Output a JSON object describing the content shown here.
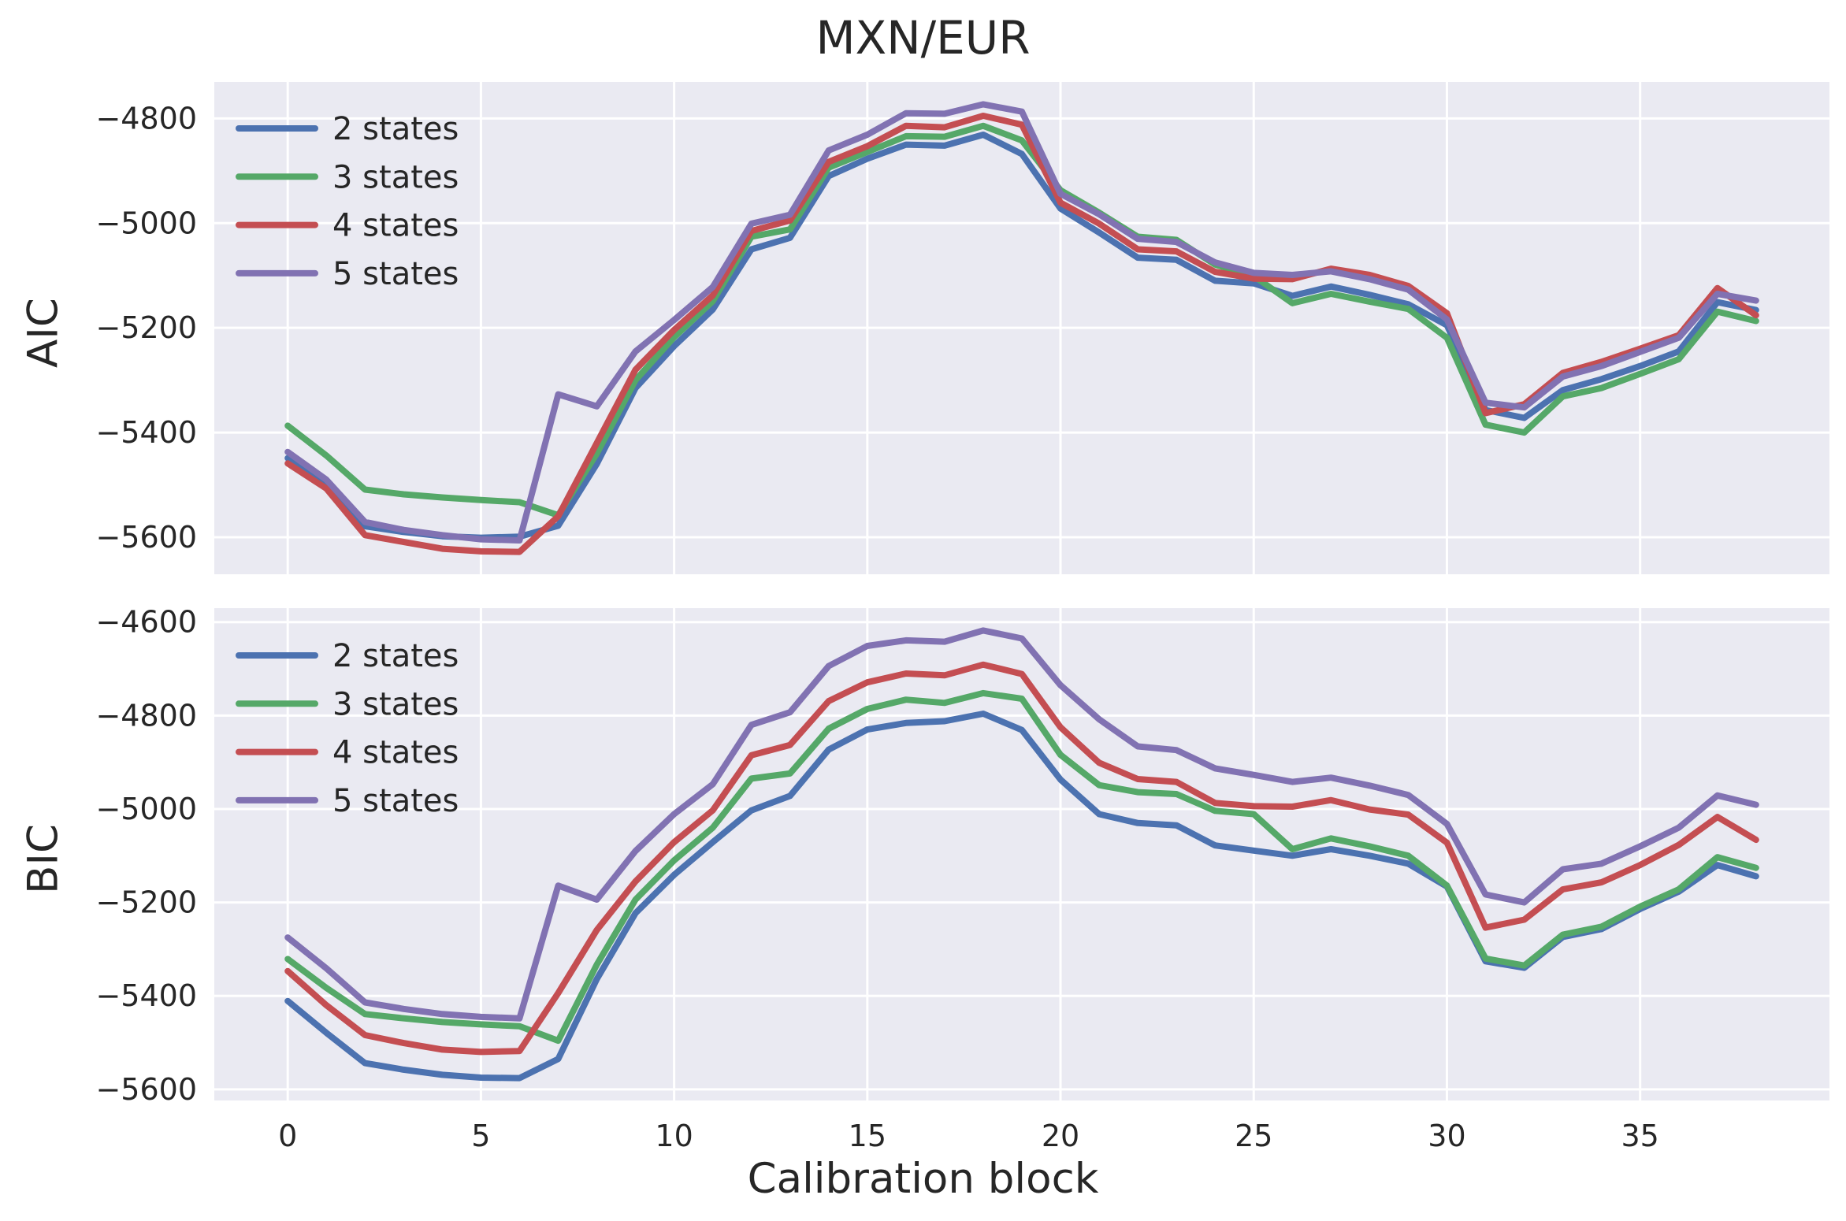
{
  "title": "MXN/EUR",
  "xlabel": "Calibration block",
  "style": {
    "figure_bg": "#ffffff",
    "axes_bg": "#eaeaf2",
    "grid_color": "#ffffff",
    "text_color": "#262626",
    "legend_text_color": "#262626"
  },
  "chart_data": [
    {
      "type": "line",
      "ylabel": "AIC",
      "grid": true,
      "legend_position": "upper left",
      "legend_entries": [
        "2 states",
        "3 states",
        "4 states",
        "5 states"
      ],
      "xticks": [
        0,
        5,
        10,
        15,
        20,
        25,
        30,
        35
      ],
      "yticks": [
        -4800,
        -5000,
        -5200,
        -5400,
        -5600
      ],
      "x": [
        0,
        1,
        2,
        3,
        4,
        5,
        6,
        7,
        8,
        9,
        10,
        11,
        12,
        13,
        14,
        15,
        16,
        17,
        18,
        19,
        20,
        21,
        22,
        23,
        24,
        25,
        26,
        27,
        28,
        29,
        30,
        31,
        32,
        33,
        34,
        35,
        36,
        37,
        38
      ],
      "series": [
        {
          "name": "2 states",
          "color": "#4C72B0",
          "values": [
            -5449,
            -5497,
            -5579,
            -5590,
            -5598,
            -5601,
            -5599,
            -5578,
            -5460,
            -5315,
            -5235,
            -5165,
            -5050,
            -5028,
            -4910,
            -4877,
            -4850,
            -4852,
            -4831,
            -4868,
            -4972,
            -5018,
            -5066,
            -5070,
            -5110,
            -5115,
            -5139,
            -5121,
            -5137,
            -5155,
            -5195,
            -5357,
            -5372,
            -5319,
            -5298,
            -5273,
            -5245,
            -5151,
            -5166
          ]
        },
        {
          "name": "3 states",
          "color": "#55A868",
          "values": [
            -5387,
            -5444,
            -5509,
            -5518,
            -5524,
            -5529,
            -5533,
            -5558,
            -5440,
            -5300,
            -5218,
            -5149,
            -5026,
            -5012,
            -4894,
            -4864,
            -4834,
            -4835,
            -4814,
            -4842,
            -4937,
            -4980,
            -5026,
            -5032,
            -5079,
            -5101,
            -5153,
            -5135,
            -5150,
            -5164,
            -5219,
            -5385,
            -5400,
            -5331,
            -5315,
            -5288,
            -5260,
            -5169,
            -5187
          ]
        },
        {
          "name": "4 states",
          "color": "#C44E52",
          "values": [
            -5459,
            -5507,
            -5596,
            -5609,
            -5622,
            -5627,
            -5628,
            -5560,
            -5420,
            -5280,
            -5204,
            -5138,
            -5015,
            -4995,
            -4883,
            -4853,
            -4814,
            -4817,
            -4795,
            -4812,
            -4961,
            -5001,
            -5050,
            -5054,
            -5093,
            -5106,
            -5107,
            -5087,
            -5099,
            -5120,
            -5172,
            -5363,
            -5346,
            -5286,
            -5265,
            -5240,
            -5214,
            -5124,
            -5176
          ]
        },
        {
          "name": "5 states",
          "color": "#8172B2",
          "values": [
            -5437,
            -5490,
            -5571,
            -5586,
            -5596,
            -5604,
            -5606,
            -5327,
            -5350,
            -5245,
            -5185,
            -5122,
            -5001,
            -4984,
            -4861,
            -4831,
            -4790,
            -4791,
            -4773,
            -4787,
            -4944,
            -4983,
            -5030,
            -5036,
            -5075,
            -5095,
            -5099,
            -5092,
            -5107,
            -5127,
            -5184,
            -5343,
            -5352,
            -5293,
            -5273,
            -5246,
            -5219,
            -5135,
            -5148
          ]
        }
      ]
    },
    {
      "type": "line",
      "ylabel": "BIC",
      "grid": true,
      "legend_position": "upper left",
      "legend_entries": [
        "2 states",
        "3 states",
        "4 states",
        "5 states"
      ],
      "xticks": [
        0,
        5,
        10,
        15,
        20,
        25,
        30,
        35
      ],
      "yticks": [
        -4600,
        -4800,
        -5000,
        -5200,
        -5400,
        -5600
      ],
      "x": [
        0,
        1,
        2,
        3,
        4,
        5,
        6,
        7,
        8,
        9,
        10,
        11,
        12,
        13,
        14,
        15,
        16,
        17,
        18,
        19,
        20,
        21,
        22,
        23,
        24,
        25,
        26,
        27,
        28,
        29,
        30,
        31,
        32,
        33,
        34,
        35,
        36,
        37,
        38
      ],
      "series": [
        {
          "name": "2 states",
          "color": "#4C72B0",
          "values": [
            -5411,
            -5479,
            -5544,
            -5558,
            -5569,
            -5575,
            -5576,
            -5535,
            -5364,
            -5223,
            -5141,
            -5071,
            -5003,
            -4972,
            -4873,
            -4830,
            -4816,
            -4812,
            -4796,
            -4831,
            -4937,
            -5011,
            -5030,
            -5035,
            -5078,
            -5089,
            -5100,
            -5086,
            -5100,
            -5117,
            -5166,
            -5326,
            -5340,
            -5274,
            -5257,
            -5214,
            -5177,
            -5120,
            -5144
          ]
        },
        {
          "name": "3 states",
          "color": "#55A868",
          "values": [
            -5321,
            -5383,
            -5439,
            -5448,
            -5456,
            -5461,
            -5465,
            -5496,
            -5333,
            -5194,
            -5110,
            -5040,
            -4935,
            -4924,
            -4828,
            -4786,
            -4766,
            -4773,
            -4752,
            -4764,
            -4884,
            -4949,
            -4964,
            -4968,
            -5004,
            -5011,
            -5086,
            -5063,
            -5080,
            -5100,
            -5164,
            -5320,
            -5335,
            -5269,
            -5252,
            -5209,
            -5172,
            -5103,
            -5126
          ]
        },
        {
          "name": "4 states",
          "color": "#C44E52",
          "values": [
            -5347,
            -5420,
            -5484,
            -5501,
            -5515,
            -5520,
            -5518,
            -5394,
            -5259,
            -5155,
            -5071,
            -5003,
            -4885,
            -4863,
            -4769,
            -4729,
            -4710,
            -4714,
            -4691,
            -4711,
            -4825,
            -4901,
            -4936,
            -4942,
            -4987,
            -4994,
            -4995,
            -4981,
            -5001,
            -5012,
            -5072,
            -5254,
            -5237,
            -5172,
            -5157,
            -5120,
            -5077,
            -5017,
            -5066
          ]
        },
        {
          "name": "5 states",
          "color": "#8172B2",
          "values": [
            -5275,
            -5341,
            -5414,
            -5428,
            -5439,
            -5445,
            -5448,
            -5164,
            -5194,
            -5090,
            -5011,
            -4947,
            -4820,
            -4793,
            -4694,
            -4651,
            -4639,
            -4642,
            -4618,
            -4635,
            -4735,
            -4808,
            -4866,
            -4874,
            -4913,
            -4927,
            -4942,
            -4933,
            -4950,
            -4970,
            -5032,
            -5183,
            -5200,
            -5129,
            -5117,
            -5080,
            -5040,
            -4971,
            -4991
          ]
        }
      ]
    }
  ]
}
